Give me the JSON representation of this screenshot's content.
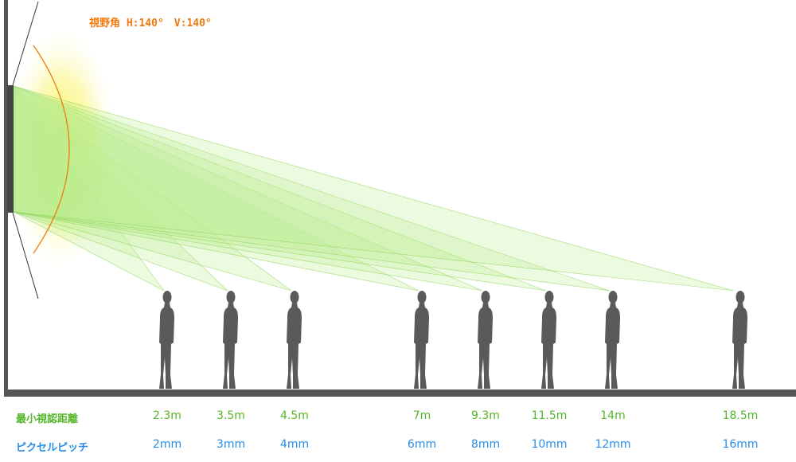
{
  "fov_label": "視野角 H:140°　V:140°",
  "rows": {
    "distance_label": "最小視認距離",
    "pitch_label": "ピクセルピッチ"
  },
  "viewers": [
    {
      "distance": "2.3m",
      "pitch": "2mm"
    },
    {
      "distance": "3.5m",
      "pitch": "3mm"
    },
    {
      "distance": "4.5m",
      "pitch": "4mm"
    },
    {
      "distance": "7m",
      "pitch": "6mm"
    },
    {
      "distance": "9.3m",
      "pitch": "8mm"
    },
    {
      "distance": "11.5m",
      "pitch": "10mm"
    },
    {
      "distance": "14m",
      "pitch": "12mm"
    },
    {
      "distance": "18.5m",
      "pitch": "16mm"
    }
  ],
  "colors": {
    "wall": "#555555",
    "ground": "#555555",
    "silhouette": "#5a5a5a",
    "beam_fill": "#b9ec8e",
    "beam_stroke": "#8fd45a",
    "arc": "#f07a10",
    "glow": "#f6ef3a",
    "distance_text": "#55b52a",
    "pitch_text": "#2a8ee6",
    "fov_text": "#f07a10"
  }
}
